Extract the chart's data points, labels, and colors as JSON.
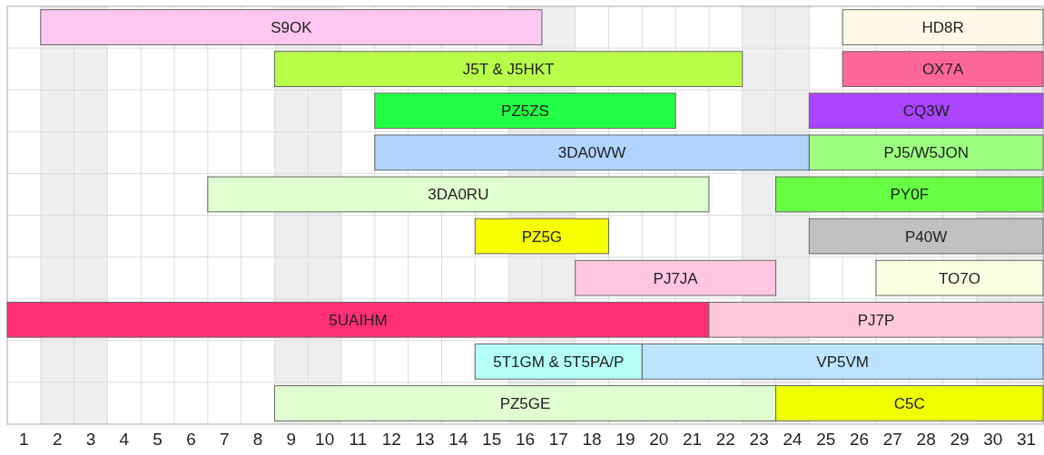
{
  "chart_data": {
    "type": "bar",
    "orientation": "horizontal",
    "stacked": false,
    "grid": true,
    "categories": [
      null,
      null,
      null,
      null,
      null,
      null,
      null,
      null,
      null,
      null
    ],
    "xlim": [
      0.5,
      31.5
    ],
    "xticks": [
      1,
      2,
      3,
      4,
      5,
      6,
      7,
      8,
      9,
      10,
      11,
      12,
      13,
      14,
      15,
      16,
      17,
      18,
      19,
      20,
      21,
      22,
      23,
      24,
      25,
      26,
      27,
      28,
      29,
      30,
      31,
      {
        "value": 1.5,
        "label": null
      },
      {
        "value": 2.5,
        "label": null
      },
      {
        "value": 3.5,
        "label": null
      },
      {
        "value": 4.5,
        "label": null
      },
      {
        "value": 5.5,
        "label": null
      },
      {
        "value": 6.5,
        "label": null
      },
      {
        "value": 7.5,
        "label": null
      },
      {
        "value": 8.5,
        "label": null
      },
      {
        "value": 9.5,
        "label": null
      },
      {
        "value": 10.5,
        "label": null
      },
      {
        "value": 11.5,
        "label": null
      },
      {
        "value": 12.5,
        "label": null
      },
      {
        "value": 13.5,
        "label": null
      },
      {
        "value": 14.5,
        "label": null
      },
      {
        "value": 15.5,
        "label": null
      },
      {
        "value": 16.5,
        "label": null
      },
      {
        "value": 17.5,
        "label": null
      },
      {
        "value": 18.5,
        "label": null
      },
      {
        "value": 19.5,
        "label": null
      },
      {
        "value": 20.5,
        "label": null
      },
      {
        "value": 21.5,
        "label": null
      },
      {
        "value": 22.5,
        "label": null
      },
      {
        "value": 23.5,
        "label": null
      },
      {
        "value": 24.5,
        "label": null
      },
      {
        "value": 25.5,
        "label": null
      },
      {
        "value": 26.5,
        "label": null
      },
      {
        "value": 27.5,
        "label": null
      },
      {
        "value": 28.5,
        "label": null
      },
      {
        "value": 29.5,
        "label": null
      },
      {
        "value": 30.5,
        "label": null
      }
    ],
    "bands": [
      {
        "axis": "x",
        "from": 1.5,
        "to": 3.5,
        "color": "#eeeeee"
      },
      {
        "axis": "x",
        "from": 8.5,
        "to": 10.5,
        "color": "#eeeeee"
      },
      {
        "axis": "x",
        "from": 15.5,
        "to": 17.5,
        "color": "#eeeeee"
      },
      {
        "axis": "x",
        "from": 22.5,
        "to": 24.5,
        "color": "#eeeeee"
      },
      {
        "axis": "x",
        "from": 29.5,
        "to": 31.5,
        "color": "#eeeeee"
      }
    ],
    "series": [
      {
        "name": "S9OK",
        "color": "#ffc6f0",
        "base": [
          1.5,
          null,
          null,
          null,
          null,
          null,
          null,
          null,
          null,
          null
        ],
        "values": [
          15,
          null,
          null,
          null,
          null,
          null,
          null,
          null,
          null,
          null
        ]
      },
      {
        "name": "HD8R",
        "color": "#fff8e6",
        "base": [
          25.5,
          null,
          null,
          null,
          null,
          null,
          null,
          null,
          null,
          null
        ],
        "values": [
          6,
          null,
          null,
          null,
          null,
          null,
          null,
          null,
          null,
          null
        ]
      },
      {
        "name": "J5T & J5HKT",
        "color": "#b8ff4a",
        "base": [
          null,
          8.5,
          null,
          null,
          null,
          null,
          null,
          null,
          null,
          null
        ],
        "values": [
          null,
          14,
          null,
          null,
          null,
          null,
          null,
          null,
          null,
          null
        ]
      },
      {
        "name": "OX7A",
        "color": "#ff6699",
        "base": [
          null,
          25.5,
          null,
          null,
          null,
          null,
          null,
          null,
          null,
          null
        ],
        "values": [
          null,
          6,
          null,
          null,
          null,
          null,
          null,
          null,
          null,
          null
        ]
      },
      {
        "name": "PZ5ZS",
        "color": "#22ff44",
        "base": [
          null,
          null,
          11.5,
          null,
          null,
          null,
          null,
          null,
          null,
          null
        ],
        "values": [
          null,
          null,
          9,
          null,
          null,
          null,
          null,
          null,
          null,
          null
        ]
      },
      {
        "name": "CQ3W",
        "color": "#aa44ff",
        "base": [
          null,
          null,
          24.5,
          null,
          null,
          null,
          null,
          null,
          null,
          null
        ],
        "values": [
          null,
          null,
          7,
          null,
          null,
          null,
          null,
          null,
          null,
          null
        ]
      },
      {
        "name": "3DA0WW",
        "color": "#b0d4ff",
        "base": [
          null,
          null,
          null,
          11.5,
          null,
          null,
          null,
          null,
          null,
          null
        ],
        "values": [
          null,
          null,
          null,
          13,
          null,
          null,
          null,
          null,
          null,
          null
        ]
      },
      {
        "name": "PJ5/W5JON",
        "color": "#9cff80",
        "base": [
          null,
          null,
          null,
          24.5,
          null,
          null,
          null,
          null,
          null,
          null
        ],
        "values": [
          null,
          null,
          null,
          7,
          null,
          null,
          null,
          null,
          null,
          null
        ]
      },
      {
        "name": "3DA0RU",
        "color": "#e0ffd0",
        "base": [
          null,
          null,
          null,
          null,
          6.5,
          null,
          null,
          null,
          null,
          null
        ],
        "values": [
          null,
          null,
          null,
          null,
          15,
          null,
          null,
          null,
          null,
          null
        ]
      },
      {
        "name": "PY0F",
        "color": "#66ff44",
        "base": [
          null,
          null,
          null,
          null,
          23.5,
          null,
          null,
          null,
          null,
          null
        ],
        "values": [
          null,
          null,
          null,
          null,
          8,
          null,
          null,
          null,
          null,
          null
        ]
      },
      {
        "name": "PZ5G",
        "color": "#f5ff00",
        "base": [
          null,
          null,
          null,
          null,
          null,
          14.5,
          null,
          null,
          null,
          null
        ],
        "values": [
          null,
          null,
          null,
          null,
          null,
          4,
          null,
          null,
          null,
          null
        ]
      },
      {
        "name": "P40W",
        "color": "#c0c0c0",
        "base": [
          null,
          null,
          null,
          null,
          null,
          24.5,
          null,
          null,
          null,
          null
        ],
        "values": [
          null,
          null,
          null,
          null,
          null,
          7,
          null,
          null,
          null,
          null
        ]
      },
      {
        "name": "PJ7JA",
        "color": "#ffc6e0",
        "base": [
          null,
          null,
          null,
          null,
          null,
          null,
          17.5,
          null,
          null,
          null
        ],
        "values": [
          null,
          null,
          null,
          null,
          null,
          null,
          6,
          null,
          null,
          null
        ]
      },
      {
        "name": "TO7O",
        "color": "#f8ffe0",
        "base": [
          null,
          null,
          null,
          null,
          null,
          null,
          26.5,
          null,
          null,
          null
        ],
        "values": [
          null,
          null,
          null,
          null,
          null,
          null,
          5,
          null,
          null,
          null
        ]
      },
      {
        "name": "5UAIHM",
        "color": "#ff2e77",
        "base": [
          null,
          null,
          null,
          null,
          null,
          null,
          null,
          0.5,
          null,
          null
        ],
        "values": [
          null,
          null,
          null,
          null,
          null,
          null,
          null,
          21,
          null,
          null
        ]
      },
      {
        "name": "PJ7P",
        "color": "#ffc8dc",
        "base": [
          null,
          null,
          null,
          null,
          null,
          null,
          null,
          21.5,
          null,
          null
        ],
        "values": [
          null,
          null,
          null,
          null,
          null,
          null,
          null,
          10,
          null,
          null
        ]
      },
      {
        "name": "5T1GM & 5T5PA/P",
        "color": "#b4fff8",
        "base": [
          null,
          null,
          null,
          null,
          null,
          null,
          null,
          null,
          14.5,
          null
        ],
        "values": [
          null,
          null,
          null,
          null,
          null,
          null,
          null,
          null,
          5,
          null
        ]
      },
      {
        "name": "VP5VM",
        "color": "#bce4ff",
        "base": [
          null,
          null,
          null,
          null,
          null,
          null,
          null,
          null,
          19.5,
          null
        ],
        "values": [
          null,
          null,
          null,
          null,
          null,
          null,
          null,
          null,
          12,
          null
        ]
      },
      {
        "name": "PZ5GE",
        "color": "#e0ffd0",
        "base": [
          null,
          null,
          null,
          null,
          null,
          null,
          null,
          null,
          null,
          8.5
        ],
        "values": [
          null,
          null,
          null,
          null,
          null,
          null,
          null,
          null,
          null,
          15
        ]
      },
      {
        "name": "C5C",
        "color": "#eeff00",
        "base": [
          null,
          null,
          null,
          null,
          null,
          null,
          null,
          null,
          null,
          23.5
        ],
        "values": [
          null,
          null,
          null,
          null,
          null,
          null,
          null,
          null,
          null,
          8
        ]
      }
    ]
  }
}
